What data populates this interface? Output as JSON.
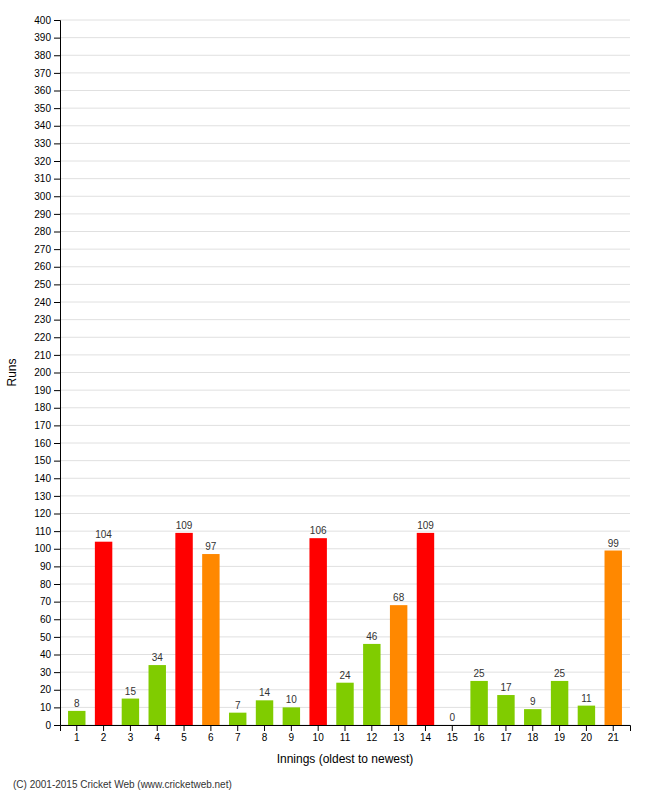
{
  "chart_data": {
    "type": "bar",
    "xlabel": "Innings (oldest to newest)",
    "ylabel": "Runs",
    "categories": [
      "1",
      "2",
      "3",
      "4",
      "5",
      "6",
      "7",
      "8",
      "9",
      "10",
      "11",
      "12",
      "13",
      "14",
      "15",
      "16",
      "17",
      "18",
      "19",
      "20",
      "21"
    ],
    "values": [
      8,
      104,
      15,
      34,
      109,
      97,
      7,
      14,
      10,
      106,
      24,
      46,
      68,
      109,
      0,
      25,
      17,
      9,
      25,
      11,
      99
    ],
    "colors": [
      "#80cc00",
      "#ff0000",
      "#80cc00",
      "#80cc00",
      "#ff0000",
      "#ff8800",
      "#80cc00",
      "#80cc00",
      "#80cc00",
      "#ff0000",
      "#80cc00",
      "#80cc00",
      "#ff8800",
      "#ff0000",
      "#80cc00",
      "#80cc00",
      "#80cc00",
      "#80cc00",
      "#80cc00",
      "#80cc00",
      "#ff8800"
    ],
    "ylim": [
      0,
      400
    ],
    "yticks": [
      0,
      10,
      20,
      30,
      40,
      50,
      60,
      70,
      80,
      90,
      100,
      110,
      120,
      130,
      140,
      150,
      160,
      170,
      180,
      190,
      200,
      210,
      220,
      230,
      240,
      250,
      260,
      270,
      280,
      290,
      300,
      310,
      320,
      330,
      340,
      350,
      360,
      370,
      380,
      390,
      400
    ],
    "grid": true,
    "data_labels": true,
    "annotations": [
      "(C) 2001-2015 Cricket Web (www.cricketweb.net)"
    ]
  }
}
